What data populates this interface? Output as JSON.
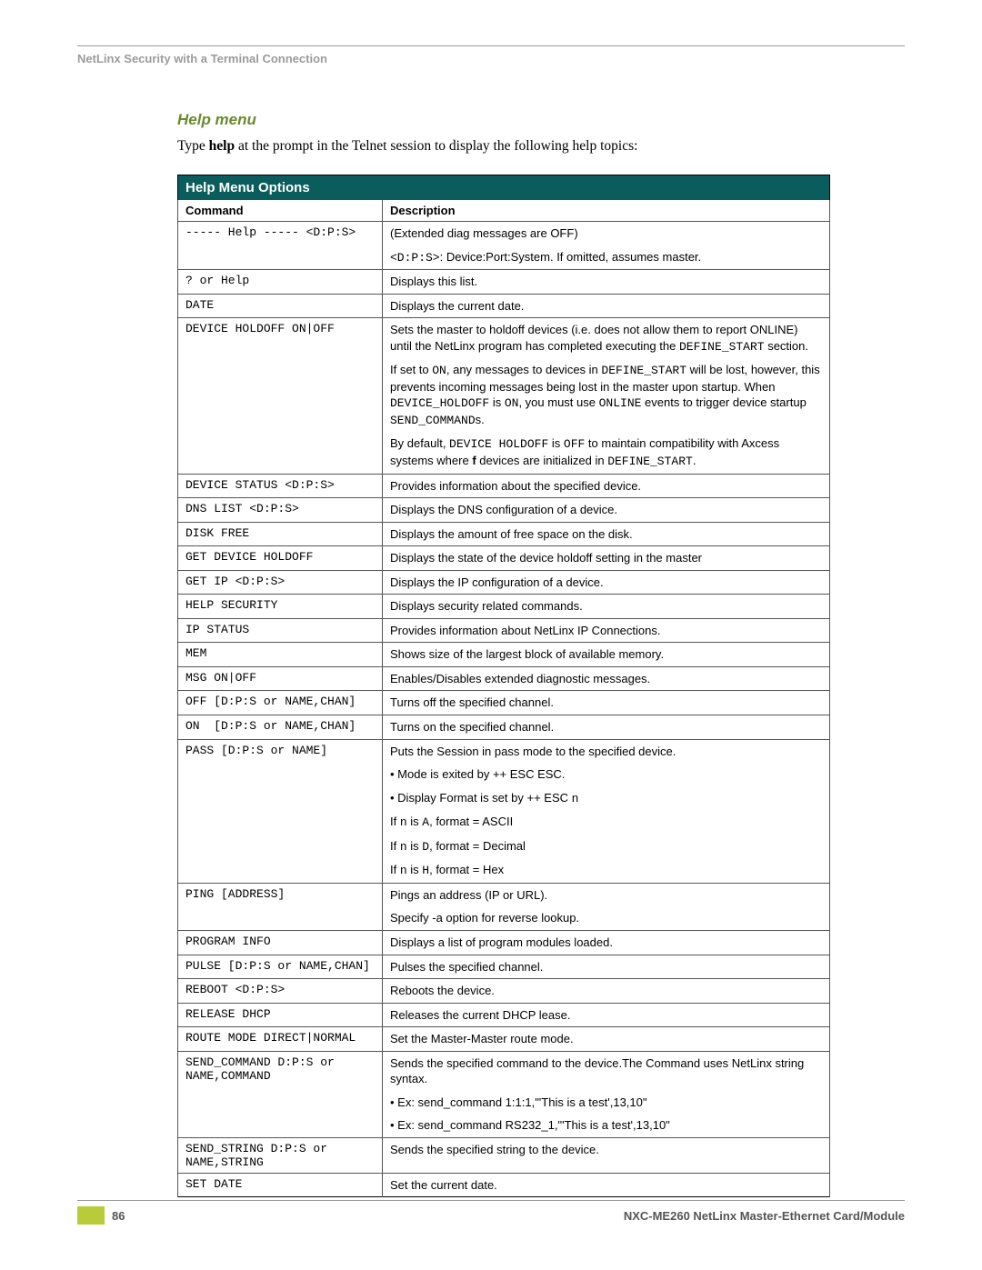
{
  "header": "NetLinx Security with a Terminal Connection",
  "section_title": "Help menu",
  "intro_prefix": "Type ",
  "intro_bold": "help",
  "intro_suffix": " at the prompt in the Telnet session to display the following help topics:",
  "table_title": "Help Menu Options",
  "col1": "Command",
  "col2": "Description",
  "rows": [
    {
      "cmd": "----- Help ----- <D:P:S>",
      "desc": [
        {
          "t": "plain",
          "v": "(Extended diag messages are OFF)"
        }
      ],
      "sep": true
    },
    {
      "cmd": "",
      "desc": [
        {
          "t": "code",
          "v": "<D:P:S>"
        },
        {
          "t": "plain",
          "v": ": Device:Port:System. If omitted, assumes master."
        }
      ],
      "sep": false
    },
    {
      "cmd": "? or Help",
      "desc": [
        {
          "t": "plain",
          "v": "Displays this list."
        }
      ],
      "sep": true
    },
    {
      "cmd": "DATE",
      "desc": [
        {
          "t": "plain",
          "v": "Displays the current date."
        }
      ],
      "sep": true
    },
    {
      "cmd": "DEVICE HOLDOFF ON|OFF",
      "desc": [
        {
          "t": "plain",
          "v": "Sets the master to holdoff devices (i.e. does not allow them to report ONLINE) until the NetLinx program has completed executing the "
        },
        {
          "t": "code",
          "v": "DEFINE_START"
        },
        {
          "t": "plain",
          "v": " section."
        }
      ],
      "sep": true
    },
    {
      "cmd": "",
      "desc": [
        {
          "t": "plain",
          "v": "If set to "
        },
        {
          "t": "code",
          "v": "ON"
        },
        {
          "t": "plain",
          "v": ", any messages to devices in "
        },
        {
          "t": "code",
          "v": "DEFINE_START"
        },
        {
          "t": "plain",
          "v": " will be lost, however, this prevents incoming messages being lost in the master upon startup. When "
        },
        {
          "t": "code",
          "v": "DEVICE_HOLDOFF"
        },
        {
          "t": "plain",
          "v": " is "
        },
        {
          "t": "code",
          "v": "ON"
        },
        {
          "t": "plain",
          "v": ", you must use "
        },
        {
          "t": "code",
          "v": "ONLINE"
        },
        {
          "t": "plain",
          "v": " events to trigger device startup "
        },
        {
          "t": "code",
          "v": "SEND_COMMAND"
        },
        {
          "t": "plain",
          "v": "s."
        }
      ],
      "sep": false
    },
    {
      "cmd": "",
      "desc": [
        {
          "t": "plain",
          "v": "By default, "
        },
        {
          "t": "code",
          "v": "DEVICE HOLDOFF"
        },
        {
          "t": "plain",
          "v": " is "
        },
        {
          "t": "code",
          "v": "OFF"
        },
        {
          "t": "plain",
          "v": " to maintain compatibility with Axcess systems where "
        },
        {
          "t": "bold",
          "v": "f"
        },
        {
          "t": "plain",
          "v": " devices are initialized in "
        },
        {
          "t": "code",
          "v": "DEFINE_START"
        },
        {
          "t": "plain",
          "v": "."
        }
      ],
      "sep": false
    },
    {
      "cmd": "DEVICE STATUS <D:P:S>",
      "desc": [
        {
          "t": "plain",
          "v": "Provides information about the specified device."
        }
      ],
      "sep": true
    },
    {
      "cmd": "DNS LIST <D:P:S>",
      "desc": [
        {
          "t": "plain",
          "v": "Displays the DNS configuration of a device."
        }
      ],
      "sep": true
    },
    {
      "cmd": "DISK FREE",
      "desc": [
        {
          "t": "plain",
          "v": "Displays the amount of free space on the disk."
        }
      ],
      "sep": true
    },
    {
      "cmd": "GET DEVICE HOLDOFF",
      "desc": [
        {
          "t": "plain",
          "v": "Displays the state of the device holdoff setting in the master"
        }
      ],
      "sep": true
    },
    {
      "cmd": "GET IP <D:P:S>",
      "desc": [
        {
          "t": "plain",
          "v": "Displays the IP configuration of a device."
        }
      ],
      "sep": true
    },
    {
      "cmd": "HELP SECURITY",
      "desc": [
        {
          "t": "plain",
          "v": "Displays security related commands."
        }
      ],
      "sep": true
    },
    {
      "cmd": "IP STATUS",
      "desc": [
        {
          "t": "plain",
          "v": "Provides information about NetLinx IP Connections."
        }
      ],
      "sep": true
    },
    {
      "cmd": "MEM",
      "desc": [
        {
          "t": "plain",
          "v": "Shows size of the largest block of available memory."
        }
      ],
      "sep": true
    },
    {
      "cmd": "MSG ON|OFF",
      "desc": [
        {
          "t": "plain",
          "v": "Enables/Disables extended diagnostic messages."
        }
      ],
      "sep": true
    },
    {
      "cmd": "OFF [D:P:S or NAME,CHAN]",
      "desc": [
        {
          "t": "plain",
          "v": "Turns off the specified channel."
        }
      ],
      "sep": true
    },
    {
      "cmd": "ON  [D:P:S or NAME,CHAN]",
      "desc": [
        {
          "t": "plain",
          "v": "Turns on the specified channel."
        }
      ],
      "sep": true
    },
    {
      "cmd": "PASS [D:P:S or NAME]",
      "desc": [
        {
          "t": "plain",
          "v": "Puts the Session in pass mode to the specified device."
        }
      ],
      "sep": true
    },
    {
      "cmd": "",
      "desc": [
        {
          "t": "plain",
          "v": "• Mode is exited by ++ ESC ESC."
        }
      ],
      "sep": false
    },
    {
      "cmd": "",
      "desc": [
        {
          "t": "plain",
          "v": "• Display Format is set by ++ ESC "
        },
        {
          "t": "code",
          "v": "n"
        }
      ],
      "sep": false
    },
    {
      "cmd": "",
      "desc": [
        {
          "t": "plain",
          "v": "  If "
        },
        {
          "t": "code",
          "v": "n"
        },
        {
          "t": "plain",
          "v": " is "
        },
        {
          "t": "code",
          "v": "A"
        },
        {
          "t": "plain",
          "v": ", format = ASCII"
        }
      ],
      "sep": false
    },
    {
      "cmd": "",
      "desc": [
        {
          "t": "plain",
          "v": "  If "
        },
        {
          "t": "code",
          "v": "n"
        },
        {
          "t": "plain",
          "v": " is  "
        },
        {
          "t": "code",
          "v": "D"
        },
        {
          "t": "plain",
          "v": ", format = Decimal"
        }
      ],
      "sep": false
    },
    {
      "cmd": "",
      "desc": [
        {
          "t": "plain",
          "v": "  If "
        },
        {
          "t": "code",
          "v": "n"
        },
        {
          "t": "plain",
          "v": " is "
        },
        {
          "t": "code",
          "v": "H"
        },
        {
          "t": "plain",
          "v": ", format  = Hex"
        }
      ],
      "sep": false
    },
    {
      "cmd": "PING [ADDRESS]",
      "desc": [
        {
          "t": "plain",
          "v": "Pings an address (IP or URL)."
        }
      ],
      "sep": true
    },
    {
      "cmd": "",
      "desc": [
        {
          "t": "plain",
          "v": "Specify -a option for reverse lookup."
        }
      ],
      "sep": false
    },
    {
      "cmd": "PROGRAM INFO",
      "desc": [
        {
          "t": "plain",
          "v": "Displays a list of program modules loaded."
        }
      ],
      "sep": true
    },
    {
      "cmd": "PULSE [D:P:S or NAME,CHAN]",
      "desc": [
        {
          "t": "plain",
          "v": "Pulses the specified channel."
        }
      ],
      "sep": true
    },
    {
      "cmd": "REBOOT <D:P:S>",
      "desc": [
        {
          "t": "plain",
          "v": "Reboots the device."
        }
      ],
      "sep": true
    },
    {
      "cmd": "RELEASE DHCP",
      "desc": [
        {
          "t": "plain",
          "v": "Releases the current DHCP lease."
        }
      ],
      "sep": true
    },
    {
      "cmd": "ROUTE MODE DIRECT|NORMAL",
      "desc": [
        {
          "t": "plain",
          "v": "Set the Master-Master route mode."
        }
      ],
      "sep": true
    },
    {
      "cmd": "SEND_COMMAND D:P:S or NAME,COMMAND",
      "desc": [
        {
          "t": "plain",
          "v": "Sends the specified command to the device.The Command uses NetLinx string syntax."
        }
      ],
      "sep": true
    },
    {
      "cmd": "",
      "desc": [
        {
          "t": "plain",
          "v": "• Ex: send_command 1:1:1,\"'This is a test',13,10\""
        }
      ],
      "sep": false
    },
    {
      "cmd": "",
      "desc": [
        {
          "t": "plain",
          "v": "• Ex: send_command RS232_1,\"'This is a test',13,10\""
        }
      ],
      "sep": false
    },
    {
      "cmd": "SEND_STRING D:P:S or NAME,STRING",
      "desc": [
        {
          "t": "plain",
          "v": "Sends the specified string to the device."
        }
      ],
      "sep": true
    },
    {
      "cmd": "SET DATE",
      "desc": [
        {
          "t": "plain",
          "v": "Set the current date."
        }
      ],
      "sep": true
    }
  ],
  "page_number": "86",
  "footer_title": "NXC-ME260 NetLinx Master-Ethernet Card/Module"
}
